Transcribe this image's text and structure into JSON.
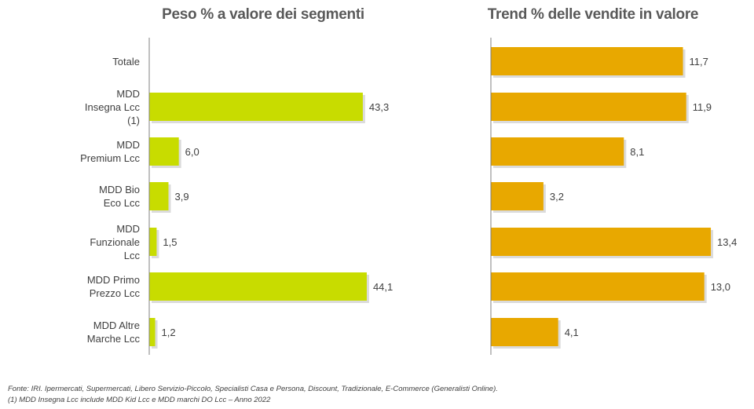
{
  "chart_data": [
    {
      "type": "bar",
      "orientation": "horizontal",
      "title": "Peso % a valore dei segmenti",
      "categories": [
        "Totale",
        "MDD\nInsegna Lcc\n(1)",
        "MDD\nPremium Lcc",
        "MDD Bio\nEco Lcc",
        "MDD\nFunzionale\nLcc",
        "MDD Primo\nPrezzo Lcc",
        "MDD Altre\nMarche Lcc"
      ],
      "values": [
        null,
        43.3,
        6.0,
        3.9,
        1.5,
        44.1,
        1.2
      ],
      "labels": [
        "",
        "43,3",
        "6,0",
        "3,9",
        "1,5",
        "44,1",
        "1,2"
      ],
      "color": "#c8dc00",
      "xlim": [
        0,
        50
      ]
    },
    {
      "type": "bar",
      "orientation": "horizontal",
      "title": "Trend % delle vendite in valore",
      "categories": [
        "Totale",
        "MDD\nInsegna Lcc\n(1)",
        "MDD\nPremium Lcc",
        "MDD Bio\nEco Lcc",
        "MDD\nFunzionale\nLcc",
        "MDD Primo\nPrezzo Lcc",
        "MDD Altre\nMarche Lcc"
      ],
      "values": [
        11.7,
        11.9,
        8.1,
        3.2,
        13.4,
        13.0,
        4.1
      ],
      "labels": [
        "11,7",
        "11,9",
        "8,1",
        "3,2",
        "13,4",
        "13,0",
        "4,1"
      ],
      "color": "#e8a800",
      "xlim": [
        0,
        15
      ]
    }
  ],
  "source": {
    "line1": "Fonte: IRI. Ipermercati, Supermercati, Libero Servizio-Piccolo, Specialisti Casa e Persona, Discount, Tradizionale, E-Commerce (Generalisti Online).",
    "line2": "(1) MDD Insegna Lcc include MDD Kid Lcc e MDD marchi DO Lcc – Anno 2022"
  }
}
